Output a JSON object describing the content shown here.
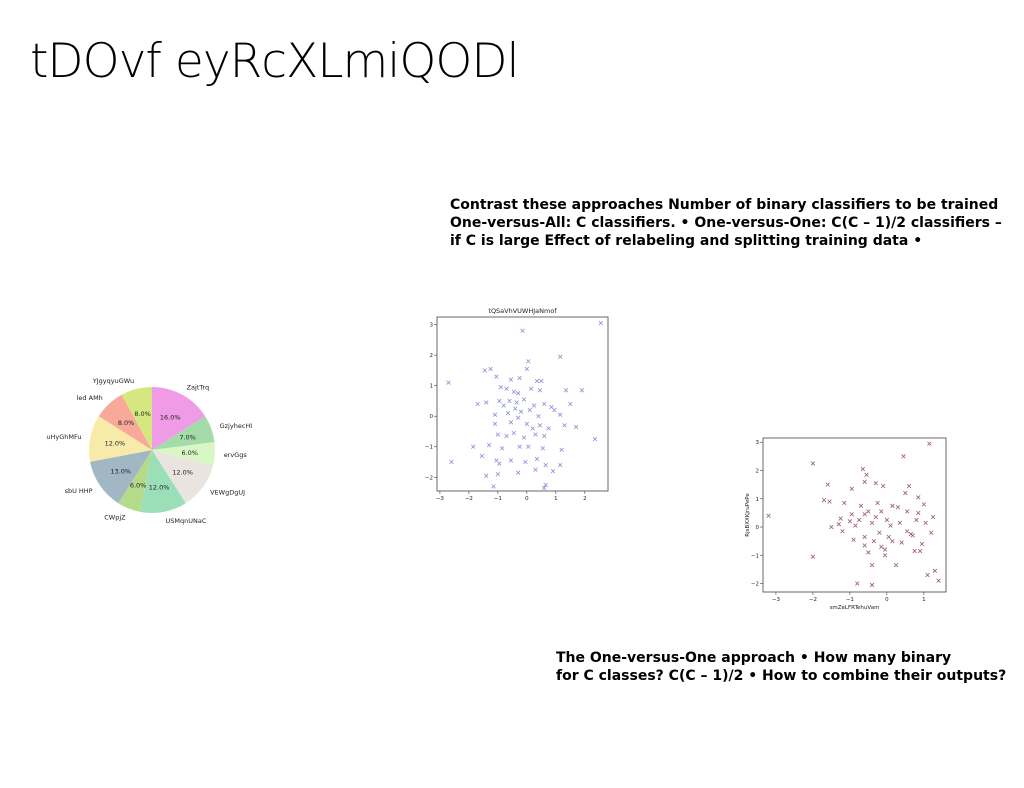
{
  "slide": {
    "title": "tDOvf eyRcXLmiQODl",
    "text_block_1": [
      "Contrast these approaches Number of binary classifiers to be trained",
      "One-versus-All: C classifiers. • One-versus-One: C(C – 1)/2 classifiers –",
      "if C is large Effect of relabeling and splitting training data •"
    ],
    "text_block_2": [
      "The One-versus-One approach • How many binary",
      "for C classes? C(C – 1)/2 • How to combine their outputs?"
    ]
  },
  "chart_data": [
    {
      "type": "pie",
      "title": "",
      "labels": [
        "ZajtTrq",
        "GzjyhecHI",
        "ervGgs",
        "VEWgDgUJ",
        "USMqnUNaC",
        "CWpjZ",
        "sbU HHP",
        "uHyGhMFu",
        "led AMh",
        "YJgyqyuGWu"
      ],
      "values": [
        16.0,
        7.0,
        6.0,
        12.0,
        12.0,
        6.0,
        13.0,
        12.0,
        8.0,
        8.0
      ],
      "value_labels": [
        "16.0%",
        "7.0%",
        "6.0%",
        "12.0%",
        "12.0%",
        "6.0%",
        "13.0%",
        "12.0%",
        "8.0%",
        "8.0%"
      ],
      "colors": [
        "#f09be6",
        "#a3dca8",
        "#d9f7c4",
        "#e9e4e0",
        "#9adfb8",
        "#b4db8a",
        "#a1b7c4",
        "#f8ebaa",
        "#f8a99a",
        "#d5e87f"
      ],
      "start_angle": 90,
      "direction": "clockwise"
    },
    {
      "type": "scatter",
      "title": "tQSaVhVUWHJaNmof",
      "xlabel": "",
      "ylabel": "",
      "marker": "x",
      "color": "#8b8fd8",
      "xlim": [
        -3.1,
        2.8
      ],
      "ylim": [
        -2.45,
        3.25
      ],
      "xticks": [
        -3,
        -2,
        -1,
        0,
        1,
        2
      ],
      "yticks": [
        -2,
        -1,
        0,
        1,
        2,
        3
      ],
      "points": [
        [
          2.55,
          3.05
        ],
        [
          -0.15,
          2.8
        ],
        [
          1.15,
          1.95
        ],
        [
          -2.7,
          1.1
        ],
        [
          -1.25,
          1.55
        ],
        [
          -1.45,
          1.5
        ],
        [
          0.05,
          1.8
        ],
        [
          0.0,
          1.55
        ],
        [
          -0.55,
          1.2
        ],
        [
          -0.25,
          1.25
        ],
        [
          0.35,
          1.15
        ],
        [
          0.5,
          1.15
        ],
        [
          -1.05,
          1.3
        ],
        [
          -0.9,
          0.95
        ],
        [
          -0.7,
          0.9
        ],
        [
          -0.45,
          0.8
        ],
        [
          -0.3,
          0.75
        ],
        [
          0.15,
          0.9
        ],
        [
          0.45,
          0.85
        ],
        [
          1.35,
          0.85
        ],
        [
          1.9,
          0.85
        ],
        [
          -1.7,
          0.4
        ],
        [
          -1.4,
          0.45
        ],
        [
          -0.95,
          0.5
        ],
        [
          -0.8,
          0.35
        ],
        [
          -0.6,
          0.5
        ],
        [
          -0.35,
          0.45
        ],
        [
          -0.1,
          0.55
        ],
        [
          0.25,
          0.35
        ],
        [
          0.6,
          0.4
        ],
        [
          0.85,
          0.3
        ],
        [
          1.5,
          0.4
        ],
        [
          -1.1,
          0.05
        ],
        [
          -0.65,
          0.1
        ],
        [
          -0.4,
          0.25
        ],
        [
          -0.2,
          0.15
        ],
        [
          0.1,
          0.2
        ],
        [
          0.4,
          0.0
        ],
        [
          0.95,
          0.2
        ],
        [
          1.15,
          0.05
        ],
        [
          -1.1,
          -0.25
        ],
        [
          -0.55,
          -0.2
        ],
        [
          -0.3,
          -0.05
        ],
        [
          0.0,
          -0.25
        ],
        [
          0.2,
          -0.4
        ],
        [
          0.45,
          -0.3
        ],
        [
          0.75,
          -0.4
        ],
        [
          1.3,
          -0.3
        ],
        [
          1.7,
          -0.35
        ],
        [
          -1.0,
          -0.6
        ],
        [
          -0.7,
          -0.65
        ],
        [
          -0.45,
          -0.55
        ],
        [
          -0.1,
          -0.7
        ],
        [
          0.3,
          -0.6
        ],
        [
          0.6,
          -0.65
        ],
        [
          2.35,
          -0.75
        ],
        [
          -1.85,
          -1.0
        ],
        [
          -1.3,
          -0.95
        ],
        [
          -0.85,
          -1.05
        ],
        [
          -0.25,
          -1.0
        ],
        [
          0.05,
          -1.0
        ],
        [
          0.55,
          -1.05
        ],
        [
          1.2,
          -1.1
        ],
        [
          -2.6,
          -1.5
        ],
        [
          -1.55,
          -1.3
        ],
        [
          -1.05,
          -1.45
        ],
        [
          -0.55,
          -1.45
        ],
        [
          -0.05,
          -1.5
        ],
        [
          0.35,
          -1.4
        ],
        [
          0.65,
          -1.6
        ],
        [
          1.15,
          -1.6
        ],
        [
          -1.4,
          -1.95
        ],
        [
          -1.0,
          -1.9
        ],
        [
          -0.3,
          -1.85
        ],
        [
          0.3,
          -1.75
        ],
        [
          0.9,
          -1.8
        ],
        [
          -1.15,
          -2.3
        ],
        [
          0.6,
          -2.35
        ],
        [
          0.65,
          -2.25
        ],
        [
          -0.95,
          -1.55
        ]
      ]
    },
    {
      "type": "scatter",
      "title": "",
      "xlabel": "smZeLFRTehuVam",
      "ylabel": "RjsBXXKjruPePe",
      "marker": "x",
      "color": "#9c5a6c",
      "xlim": [
        -3.35,
        1.6
      ],
      "ylim": [
        -2.3,
        3.15
      ],
      "xticks": [
        -3,
        -2,
        -1,
        0,
        1
      ],
      "yticks": [
        -2,
        -1,
        0,
        1,
        2,
        3
      ],
      "points": [
        [
          -3.2,
          0.4
        ],
        [
          -2.0,
          2.25
        ],
        [
          -2.0,
          -1.05
        ],
        [
          -1.6,
          1.5
        ],
        [
          -1.7,
          0.95
        ],
        [
          -1.55,
          0.9
        ],
        [
          -1.5,
          0.0
        ],
        [
          -1.25,
          0.3
        ],
        [
          -1.2,
          -0.15
        ],
        [
          -1.15,
          0.85
        ],
        [
          -0.95,
          1.35
        ],
        [
          -0.95,
          0.45
        ],
        [
          -0.9,
          -0.45
        ],
        [
          -0.85,
          0.05
        ],
        [
          -0.75,
          0.25
        ],
        [
          -0.7,
          0.75
        ],
        [
          -0.65,
          2.05
        ],
        [
          -0.6,
          1.6
        ],
        [
          -0.6,
          -0.35
        ],
        [
          -0.6,
          -0.65
        ],
        [
          -0.55,
          1.85
        ],
        [
          -0.5,
          0.55
        ],
        [
          -0.5,
          -0.9
        ],
        [
          -0.4,
          0.15
        ],
        [
          -0.4,
          -1.35
        ],
        [
          -0.35,
          -0.5
        ],
        [
          -0.3,
          1.55
        ],
        [
          -0.3,
          0.35
        ],
        [
          -0.25,
          0.85
        ],
        [
          -0.2,
          -0.2
        ],
        [
          -0.15,
          0.55
        ],
        [
          -0.1,
          1.45
        ],
        [
          -0.05,
          -0.8
        ],
        [
          -0.05,
          -1.0
        ],
        [
          0.0,
          0.25
        ],
        [
          0.05,
          -0.35
        ],
        [
          0.1,
          0.05
        ],
        [
          0.15,
          -0.5
        ],
        [
          0.25,
          -1.35
        ],
        [
          0.3,
          0.7
        ],
        [
          0.35,
          0.15
        ],
        [
          0.4,
          -0.55
        ],
        [
          0.45,
          2.5
        ],
        [
          0.5,
          1.2
        ],
        [
          0.55,
          0.55
        ],
        [
          0.6,
          1.45
        ],
        [
          0.65,
          -0.25
        ],
        [
          0.7,
          -0.3
        ],
        [
          0.75,
          -0.85
        ],
        [
          0.8,
          0.25
        ],
        [
          0.85,
          1.05
        ],
        [
          0.9,
          -0.85
        ],
        [
          0.95,
          -0.6
        ],
        [
          1.0,
          0.8
        ],
        [
          1.1,
          -1.7
        ],
        [
          1.15,
          2.95
        ],
        [
          1.2,
          -0.2
        ],
        [
          1.25,
          0.35
        ],
        [
          1.3,
          -1.55
        ],
        [
          1.4,
          -1.9
        ],
        [
          -0.8,
          -2.0
        ],
        [
          -0.4,
          -2.05
        ],
        [
          -1.3,
          0.1
        ],
        [
          0.15,
          0.75
        ],
        [
          -0.6,
          0.45
        ],
        [
          0.55,
          -0.15
        ],
        [
          -1.0,
          0.2
        ],
        [
          1.05,
          0.15
        ],
        [
          -0.15,
          -0.7
        ],
        [
          0.85,
          0.5
        ]
      ]
    }
  ]
}
